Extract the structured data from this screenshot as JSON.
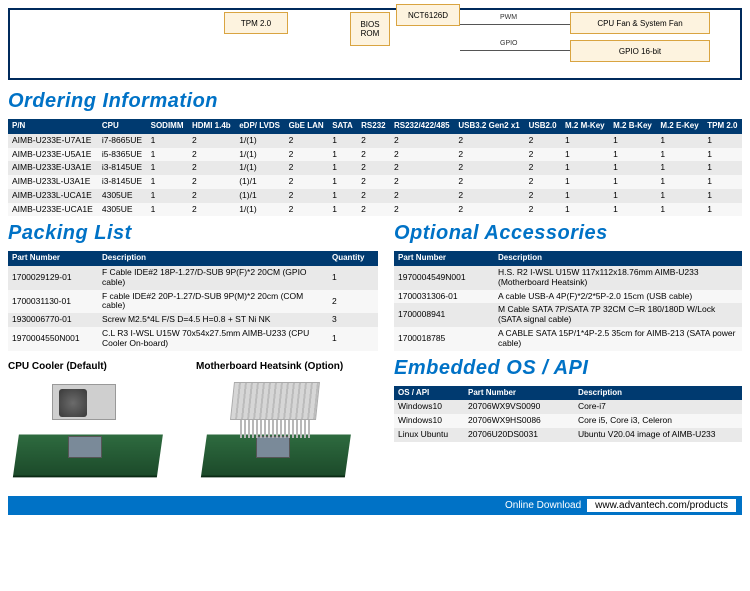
{
  "diagram": {
    "tpm": "TPM 2.0",
    "bios": "BIOS\nROM",
    "nct": "NCT6126D",
    "fan": "CPU Fan & System Fan",
    "gpio": "GPIO 16-bit",
    "pwm_label": "PWM",
    "gpio_label": "GPIO"
  },
  "sections": {
    "ordering": "Ordering Information",
    "packing": "Packing List",
    "accessories": "Optional Accessories",
    "os": "Embedded OS / API"
  },
  "ordering": {
    "headers": [
      "P/N",
      "CPU",
      "SODIMM",
      "HDMI 1.4b",
      "eDP/ LVDS",
      "GbE LAN",
      "SATA",
      "RS232",
      "RS232/422/485",
      "USB3.2 Gen2 x1",
      "USB2.0",
      "M.2 M-Key",
      "M.2 B-Key",
      "M.2 E-Key",
      "TPM 2.0"
    ],
    "rows": [
      [
        "AIMB-U233E-U7A1E",
        "i7-8665UE",
        "1",
        "2",
        "1/(1)",
        "2",
        "1",
        "2",
        "2",
        "2",
        "2",
        "1",
        "1",
        "1",
        "1"
      ],
      [
        "AIMB-U233E-U5A1E",
        "i5-8365UE",
        "1",
        "2",
        "1/(1)",
        "2",
        "1",
        "2",
        "2",
        "2",
        "2",
        "1",
        "1",
        "1",
        "1"
      ],
      [
        "AIMB-U233E-U3A1E",
        "i3-8145UE",
        "1",
        "2",
        "1/(1)",
        "2",
        "1",
        "2",
        "2",
        "2",
        "2",
        "1",
        "1",
        "1",
        "1"
      ],
      [
        "AIMB-U233L-U3A1E",
        "i3-8145UE",
        "1",
        "2",
        "(1)/1",
        "2",
        "1",
        "2",
        "2",
        "2",
        "2",
        "1",
        "1",
        "1",
        "1"
      ],
      [
        "AIMB-U233L-UCA1E",
        "4305UE",
        "1",
        "2",
        "(1)/1",
        "2",
        "1",
        "2",
        "2",
        "2",
        "2",
        "1",
        "1",
        "1",
        "1"
      ],
      [
        "AIMB-U233E-UCA1E",
        "4305UE",
        "1",
        "2",
        "1/(1)",
        "2",
        "1",
        "2",
        "2",
        "2",
        "2",
        "1",
        "1",
        "1",
        "1"
      ]
    ]
  },
  "packing": {
    "headers": [
      "Part Number",
      "Description",
      "Quantity"
    ],
    "rows": [
      [
        "1700029129-01",
        "F Cable IDE#2 18P-1.27/D-SUB 9P(F)*2 20CM (GPIO cable)",
        "1"
      ],
      [
        "1700031130-01",
        "F cable IDE#2 20P-1.27/D-SUB 9P(M)*2 20cm (COM cable)",
        "2"
      ],
      [
        "1930006770-01",
        "Screw M2.5*4L F/S D=4.5 H=0.8 + ST Ni NK",
        "3"
      ],
      [
        "1970004550N001",
        "C.L R3 I-WSL U15W 70x54x27.5mm AIMB-U233 (CPU Cooler On-board)",
        "1"
      ]
    ]
  },
  "accessories": {
    "headers": [
      "Part Number",
      "Description"
    ],
    "rows": [
      [
        "1970004549N001",
        "H.S. R2 I-WSL U15W 117x112x18.76mm AIMB-U233 (Motherboard Heatsink)"
      ],
      [
        "1700031306-01",
        "A cable USB-A 4P(F)*2/2*5P-2.0 15cm (USB cable)"
      ],
      [
        "1700008941",
        "M Cable SATA 7P/SATA 7P 32CM C=R 180/180D W/Lock (SATA signal cable)"
      ],
      [
        "1700018785",
        "A CABLE SATA 15P/1*4P-2.5 35cm for AIMB-213 (SATA power cable)"
      ]
    ]
  },
  "cooler": {
    "default_label": "CPU Cooler (Default)",
    "heatsink_label": "Motherboard Heatsink (Option)"
  },
  "os": {
    "headers": [
      "OS / API",
      "Part Number",
      "Description"
    ],
    "rows": [
      [
        "Windows10",
        "20706WX9VS0090",
        "Core-i7"
      ],
      [
        "Windows10",
        "20706WX9HS0086",
        "Core i5, Core i3, Celeron"
      ],
      [
        "Linux Ubuntu",
        "20706U20DS0031",
        "Ubuntu V20.04 image of AIMB-U233"
      ]
    ]
  },
  "footer": {
    "label": "Online Download",
    "url": "www.advantech.com/products"
  }
}
